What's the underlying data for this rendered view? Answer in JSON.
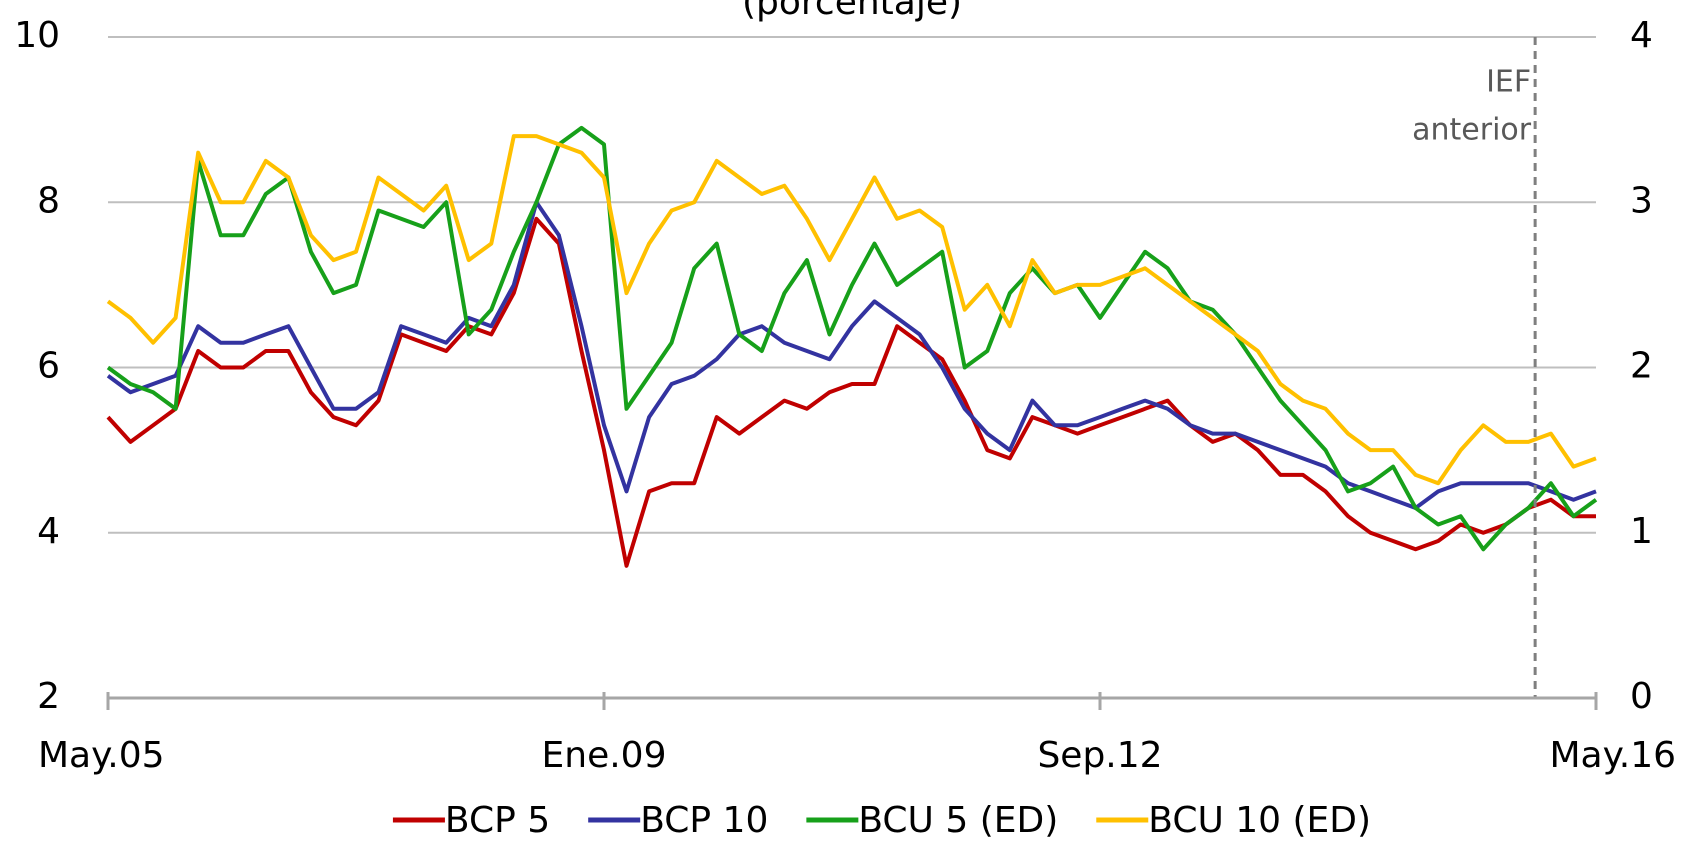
{
  "chart_data": {
    "type": "line",
    "subtitle": "(porcentaje)",
    "categories": [
      "May.05",
      null,
      null,
      null,
      null,
      null,
      null,
      null,
      null,
      null,
      null,
      null,
      null,
      null,
      null,
      null,
      null,
      null,
      null,
      null,
      null,
      null,
      "Ene.09",
      null,
      null,
      null,
      null,
      null,
      null,
      null,
      null,
      null,
      null,
      null,
      null,
      null,
      null,
      null,
      null,
      null,
      null,
      null,
      null,
      null,
      "Sep.12",
      null,
      null,
      null,
      null,
      null,
      null,
      null,
      null,
      null,
      null,
      null,
      null,
      null,
      null,
      null,
      null,
      null,
      null,
      null,
      null,
      null,
      "May.16"
    ],
    "ylim": [
      2,
      10
    ],
    "yticks": [
      2,
      4,
      6,
      8,
      10
    ],
    "y2lim": [
      0,
      4
    ],
    "y2ticks": [
      0,
      1,
      2,
      3,
      4
    ],
    "grid": true,
    "legend": "bottom",
    "annotation": {
      "text": [
        "IEF",
        "anterior"
      ]
    },
    "series": [
      {
        "name": "BCP 5",
        "color": "#c00000",
        "axis": "y",
        "values": [
          5.4,
          5.1,
          5.3,
          5.5,
          6.2,
          6.0,
          6.0,
          6.2,
          6.2,
          5.7,
          5.4,
          5.3,
          5.6,
          6.4,
          6.3,
          6.2,
          6.5,
          6.4,
          6.9,
          7.8,
          7.5,
          6.2,
          5.0,
          3.6,
          4.5,
          4.6,
          4.6,
          5.4,
          5.2,
          5.4,
          5.6,
          5.5,
          5.7,
          5.8,
          5.8,
          6.5,
          6.3,
          6.1,
          5.6,
          5.0,
          4.9,
          5.4,
          5.3,
          5.2,
          5.3,
          5.4,
          5.5,
          5.6,
          5.3,
          5.1,
          5.2,
          5.0,
          4.7,
          4.7,
          4.5,
          4.2,
          4.0,
          3.9,
          3.8,
          3.9,
          4.1,
          4.0,
          4.1,
          4.3,
          4.4,
          4.2,
          4.2
        ]
      },
      {
        "name": "BCP 10",
        "color": "#3333a0",
        "axis": "y",
        "values": [
          5.9,
          5.7,
          5.8,
          5.9,
          6.5,
          6.3,
          6.3,
          6.4,
          6.5,
          6.0,
          5.5,
          5.5,
          5.7,
          6.5,
          6.4,
          6.3,
          6.6,
          6.5,
          7.0,
          8.0,
          7.6,
          6.5,
          5.3,
          4.5,
          5.4,
          5.8,
          5.9,
          6.1,
          6.4,
          6.5,
          6.3,
          6.2,
          6.1,
          6.5,
          6.8,
          6.6,
          6.4,
          6.0,
          5.5,
          5.2,
          5.0,
          5.6,
          5.3,
          5.3,
          5.4,
          5.5,
          5.6,
          5.5,
          5.3,
          5.2,
          5.2,
          5.1,
          5.0,
          4.9,
          4.8,
          4.6,
          4.5,
          4.4,
          4.3,
          4.5,
          4.6,
          4.6,
          4.6,
          4.6,
          4.5,
          4.4,
          4.5
        ]
      },
      {
        "name": "BCU 5 (ED)",
        "color": "#17a01a",
        "axis": "y2",
        "values": [
          2.0,
          1.9,
          1.85,
          1.75,
          3.25,
          2.8,
          2.8,
          3.05,
          3.15,
          2.7,
          2.45,
          2.5,
          2.95,
          2.9,
          2.85,
          3.0,
          2.2,
          2.35,
          2.7,
          3.0,
          3.35,
          3.45,
          3.35,
          1.75,
          1.95,
          2.15,
          2.6,
          2.75,
          2.2,
          2.1,
          2.45,
          2.65,
          2.2,
          2.5,
          2.75,
          2.5,
          2.6,
          2.7,
          2.0,
          2.1,
          2.45,
          2.6,
          2.45,
          2.5,
          2.3,
          2.5,
          2.7,
          2.6,
          2.4,
          2.35,
          2.2,
          2.0,
          1.8,
          1.65,
          1.5,
          1.25,
          1.3,
          1.4,
          1.15,
          1.05,
          1.1,
          0.9,
          1.05,
          1.15,
          1.3,
          1.1,
          1.2
        ]
      },
      {
        "name": "BCU 10 (ED)",
        "color": "#ffc000",
        "axis": "y2",
        "values": [
          2.4,
          2.3,
          2.15,
          2.3,
          3.3,
          3.0,
          3.0,
          3.25,
          3.15,
          2.8,
          2.65,
          2.7,
          3.15,
          3.05,
          2.95,
          3.1,
          2.65,
          2.75,
          3.4,
          3.4,
          3.35,
          3.3,
          3.15,
          2.45,
          2.75,
          2.95,
          3.0,
          3.25,
          3.15,
          3.05,
          3.1,
          2.9,
          2.65,
          2.9,
          3.15,
          2.9,
          2.95,
          2.85,
          2.35,
          2.5,
          2.25,
          2.65,
          2.45,
          2.5,
          2.5,
          2.55,
          2.6,
          2.5,
          2.4,
          2.3,
          2.2,
          2.1,
          1.9,
          1.8,
          1.75,
          1.6,
          1.5,
          1.5,
          1.35,
          1.3,
          1.5,
          1.65,
          1.55,
          1.55,
          1.6,
          1.4,
          1.45
        ]
      }
    ]
  }
}
